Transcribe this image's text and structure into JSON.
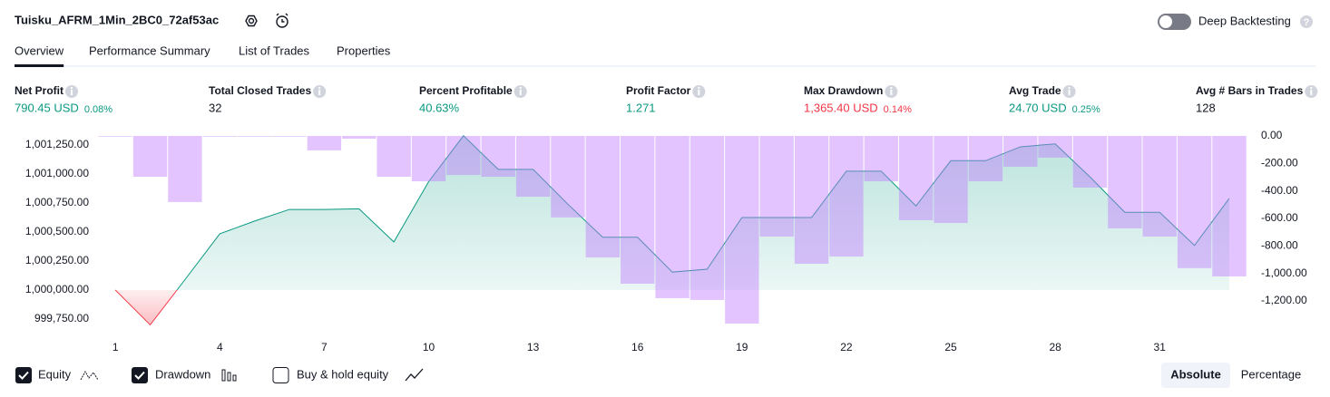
{
  "header": {
    "title": "Tuisku_AFRM_1Min_2BC0_72af53ac",
    "deep_backtesting": "Deep Backtesting"
  },
  "tabs": [
    "Overview",
    "Performance Summary",
    "List of Trades",
    "Properties"
  ],
  "metrics": [
    {
      "label": "Net Profit",
      "value": "790.45 USD",
      "percent": "0.08%",
      "color": "#089981"
    },
    {
      "label": "Total Closed Trades",
      "value": "32",
      "color": "#131722"
    },
    {
      "label": "Percent Profitable",
      "value": "40.63%",
      "color": "#089981"
    },
    {
      "label": "Profit Factor",
      "value": "1.271",
      "color": "#089981"
    },
    {
      "label": "Max Drawdown",
      "value": "1,365.40 USD",
      "percent": "0.14%",
      "color": "#f23645"
    },
    {
      "label": "Avg Trade",
      "value": "24.70 USD",
      "percent": "0.25%",
      "color": "#089981"
    },
    {
      "label": "Avg # Bars in Trades",
      "value": "128",
      "color": "#131722"
    }
  ],
  "chart_data": {
    "type": "combo",
    "x": [
      1,
      2,
      3,
      4,
      5,
      6,
      7,
      8,
      9,
      10,
      11,
      12,
      13,
      14,
      15,
      16,
      17,
      18,
      19,
      20,
      21,
      22,
      23,
      24,
      25,
      26,
      27,
      28,
      29,
      30,
      31,
      32,
      33
    ],
    "xlim": [
      0.5,
      33.6
    ],
    "xticks": [
      1,
      4,
      7,
      10,
      13,
      16,
      19,
      22,
      25,
      28,
      31
    ],
    "ylim": [
      999672,
      1001344
    ],
    "yticks": [
      {
        "value": 999750,
        "label": "999,750.00"
      },
      {
        "value": 1000000,
        "label": "1,000,000.00"
      },
      {
        "value": 1000250,
        "label": "1,000,250.00"
      },
      {
        "value": 1000500,
        "label": "1,000,500.00"
      },
      {
        "value": 1000750,
        "label": "1,000,750.00"
      },
      {
        "value": 1001000,
        "label": "1,001,000.00"
      },
      {
        "value": 1001250,
        "label": "1,001,250.00"
      }
    ],
    "y2lim": [
      -1398,
      13
    ],
    "y2ticks": [
      {
        "value": 0,
        "label": "0.00"
      },
      {
        "value": -200,
        "label": "-200.00"
      },
      {
        "value": -400,
        "label": "-400.00"
      },
      {
        "value": -600,
        "label": "-600.00"
      },
      {
        "value": -800,
        "label": "-800.00"
      },
      {
        "value": -1000,
        "label": "-1,000.00"
      },
      {
        "value": -1200,
        "label": "-1,200.00"
      }
    ],
    "series": [
      {
        "name": "Equity",
        "type": "line",
        "color": "#089981",
        "values": [
          1000000,
          999700,
          1000090,
          1000485,
          1000595,
          1000695,
          1000695,
          1000700,
          1000415,
          1000935,
          1001330,
          1001040,
          1001040,
          1000740,
          1000455,
          1000455,
          1000155,
          1000180,
          1000625,
          1000625,
          1000625,
          1001025,
          1001025,
          1000725,
          1001115,
          1001115,
          1001235,
          1001260,
          1000975,
          1000670,
          1000670,
          1000385,
          1000790
        ]
      },
      {
        "name": "Drawdown",
        "type": "bar",
        "axis": "y2",
        "color": "#c27cff",
        "values": [
          0,
          -297,
          -481,
          0,
          0,
          0,
          -105,
          -20,
          -297,
          -330,
          -284,
          -297,
          -442,
          -593,
          -884,
          -1075,
          -1180,
          -1193,
          -1365,
          -732,
          -930,
          -877,
          -330,
          -613,
          -633,
          -330,
          -224,
          -158,
          -376,
          -672,
          -732,
          -962,
          -1022
        ]
      }
    ],
    "buy_hold": "Buy & hold equity"
  },
  "view_modes": [
    "Absolute",
    "Percentage"
  ]
}
